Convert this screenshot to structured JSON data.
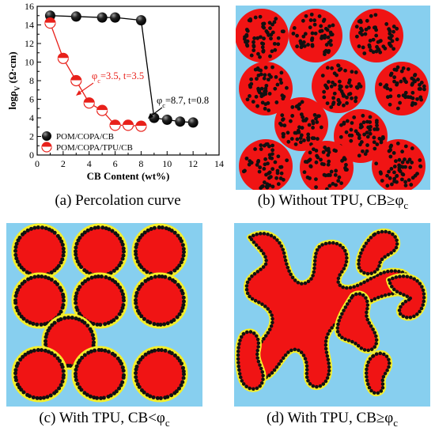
{
  "chart_data": {
    "type": "scatter",
    "xlabel": "CB Content (wt%)",
    "ylabel_main": "logρ",
    "ylabel_sub": "V",
    "ylabel_unit": " (Ω·cm)",
    "xlim": [
      0,
      14
    ],
    "ylim": [
      0,
      16
    ],
    "xticks": [
      "0",
      "2",
      "4",
      "6",
      "8",
      "10",
      "12",
      "14"
    ],
    "yticks": [
      "0",
      "2",
      "4",
      "6",
      "8",
      "10",
      "12",
      "14",
      "16"
    ],
    "xtick_values": [
      0,
      2,
      4,
      6,
      8,
      10,
      12,
      14
    ],
    "ytick_values": [
      0,
      2,
      4,
      6,
      8,
      10,
      12,
      14,
      16
    ],
    "legend_position": "lower-left",
    "series": [
      {
        "name": "POM/COPA/CB",
        "marker": "black-sphere",
        "x": [
          1,
          3,
          5,
          6,
          8,
          9,
          10,
          11,
          12
        ],
        "y": [
          15.0,
          14.9,
          14.8,
          14.8,
          14.5,
          4.0,
          3.8,
          3.6,
          3.5
        ]
      },
      {
        "name": "POM/COPA/TPU/CB",
        "marker": "half-red",
        "x": [
          1,
          2,
          3,
          4,
          5,
          6,
          7,
          8
        ],
        "y": [
          14.2,
          10.4,
          8.0,
          5.6,
          4.8,
          3.2,
          3.2,
          3.1
        ]
      }
    ],
    "annotations": [
      {
        "main": "φ",
        "sub": "c",
        "rest": "=3.5, t=3.5",
        "color": "#e8201a"
      },
      {
        "main": "φ",
        "sub": "c",
        "rest": "=8.7, t=0.8",
        "color": "#000000"
      }
    ]
  },
  "captions": {
    "a": "(a) Percolation curve",
    "b": {
      "text": "(b) Without TPU, CB≥φ",
      "sub": "c"
    },
    "c": {
      "text": "(c) With TPU, CB<φ",
      "sub": "c"
    },
    "d": {
      "text": "(d) With TPU, CB≥φ",
      "sub": "c"
    }
  },
  "colors": {
    "background_blue": "#87cfef",
    "domain_red": "#f01414",
    "particle_black": "#111111",
    "tpu_yellow": "#f4ee2a",
    "curve_red": "#e8201a"
  }
}
